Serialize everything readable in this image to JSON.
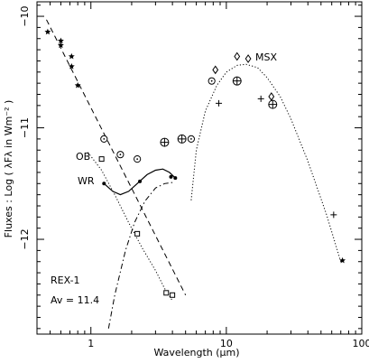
{
  "chart_data": {
    "type": "scatter",
    "xlabel": "Wavelength (μm)",
    "ylabel": "Fluxes : Log ( λFλ in Wm⁻² )",
    "x_scale": "log",
    "xlim": [
      0.4,
      100
    ],
    "ylim": [
      -12.85,
      -9.87
    ],
    "x_ticks": [
      1,
      10,
      100
    ],
    "x_tick_labels": [
      "1",
      "10",
      "100"
    ],
    "y_ticks": [
      -10,
      -11,
      -12
    ],
    "y_tick_labels": [
      "−10",
      "−11",
      "−12"
    ],
    "annotations": [
      "MSX",
      "OB",
      "WR",
      "REX-1",
      "Av = 11.4"
    ],
    "series": [
      {
        "marker": "star",
        "points": [
          [
            0.48,
            -10.14
          ],
          [
            0.6,
            -10.22
          ],
          [
            0.6,
            -10.26
          ],
          [
            0.72,
            -10.36
          ],
          [
            0.72,
            -10.45
          ],
          [
            0.8,
            -10.62
          ],
          [
            72,
            -12.19
          ]
        ]
      },
      {
        "marker": "circle-dot",
        "points": [
          [
            1.25,
            -11.1
          ],
          [
            1.65,
            -11.24
          ],
          [
            2.2,
            -11.28
          ],
          [
            5.5,
            -11.1
          ],
          [
            7.8,
            -10.58
          ]
        ]
      },
      {
        "marker": "circle-plus",
        "points": [
          [
            3.5,
            -11.13
          ],
          [
            4.7,
            -11.1
          ],
          [
            12,
            -10.58
          ],
          [
            22,
            -10.79
          ]
        ]
      },
      {
        "marker": "diamond",
        "points": [
          [
            8.3,
            -10.48
          ],
          [
            12,
            -10.36
          ],
          [
            14.5,
            -10.38
          ],
          [
            21.5,
            -10.72
          ]
        ]
      },
      {
        "marker": "plus",
        "points": [
          [
            8.8,
            -10.78
          ],
          [
            18,
            -10.74
          ],
          [
            62,
            -11.78
          ]
        ]
      },
      {
        "marker": "square",
        "points": [
          [
            1.2,
            -11.28
          ],
          [
            2.2,
            -11.95
          ],
          [
            3.6,
            -12.48
          ],
          [
            4,
            -12.5
          ]
        ]
      },
      {
        "marker": "dot",
        "points": [
          [
            1.25,
            -11.5
          ],
          [
            2.3,
            -11.48
          ],
          [
            3.9,
            -11.44
          ],
          [
            4.2,
            -11.45
          ]
        ]
      }
    ],
    "curves": [
      {
        "style": "dashed",
        "points": [
          [
            0.47,
            -10.03
          ],
          [
            5,
            -12.5
          ]
        ]
      },
      {
        "style": "dotted",
        "points": [
          [
            5.5,
            -11.65
          ],
          [
            6,
            -11.2
          ],
          [
            7,
            -10.85
          ],
          [
            8.5,
            -10.62
          ],
          [
            10,
            -10.5
          ],
          [
            12,
            -10.44
          ],
          [
            14,
            -10.43
          ],
          [
            17,
            -10.46
          ],
          [
            20,
            -10.55
          ],
          [
            25,
            -10.72
          ],
          [
            30,
            -10.92
          ],
          [
            40,
            -11.3
          ],
          [
            55,
            -11.78
          ],
          [
            70,
            -12.2
          ]
        ]
      },
      {
        "style": "solid",
        "points": [
          [
            1.25,
            -11.5
          ],
          [
            1.45,
            -11.57
          ],
          [
            1.65,
            -11.6
          ],
          [
            1.9,
            -11.57
          ],
          [
            2.2,
            -11.5
          ],
          [
            2.6,
            -11.42
          ],
          [
            3,
            -11.38
          ],
          [
            3.4,
            -11.37
          ],
          [
            3.8,
            -11.4
          ],
          [
            4.2,
            -11.45
          ]
        ]
      },
      {
        "style": "dotted",
        "points": [
          [
            0.95,
            -11.22
          ],
          [
            1.2,
            -11.38
          ],
          [
            1.5,
            -11.6
          ],
          [
            1.9,
            -11.85
          ],
          [
            2.4,
            -12.08
          ],
          [
            3,
            -12.28
          ],
          [
            3.5,
            -12.44
          ],
          [
            4,
            -12.55
          ]
        ]
      },
      {
        "style": "dashdot",
        "points": [
          [
            1.35,
            -12.8
          ],
          [
            1.5,
            -12.5
          ],
          [
            1.8,
            -12.1
          ],
          [
            2.1,
            -11.85
          ],
          [
            2.5,
            -11.66
          ],
          [
            3,
            -11.54
          ],
          [
            3.5,
            -11.5
          ],
          [
            4,
            -11.49
          ]
        ]
      }
    ]
  }
}
